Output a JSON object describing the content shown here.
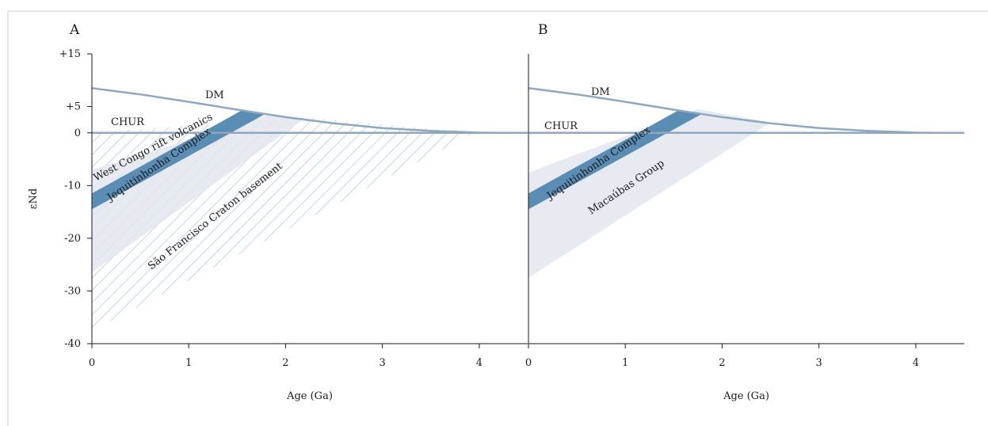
{
  "colors": {
    "reference_line": "#8fa8bf",
    "dark_band": "#5a8db3",
    "light_band": "#e3e8ee",
    "hatch": "#b8c6d3",
    "axis": "#1a1a1a",
    "frame": "#cccccc"
  },
  "chart_data": [
    {
      "type": "area",
      "panel_label": "A",
      "xlabel": "Age (Ga)",
      "ylabel": "εNd",
      "xlim": [
        0,
        4.5
      ],
      "ylim": [
        -40,
        15
      ],
      "x_ticks": [
        0,
        1,
        2,
        3,
        4
      ],
      "x_tick_labels": [
        "0",
        "1",
        "2",
        "3",
        "4"
      ],
      "y_ticks": [
        15,
        5,
        0,
        -10,
        -20,
        -30,
        -40
      ],
      "y_tick_labels": [
        "+15",
        "+5",
        "0",
        "-10",
        "-20",
        "-30",
        "-40"
      ],
      "reference_curves": [
        {
          "label": "DM",
          "x": [
            0,
            0.5,
            1.0,
            1.5,
            2.0,
            2.5,
            3.0,
            3.5,
            4.0,
            4.2,
            4.5
          ],
          "y": [
            8.5,
            7.3,
            5.9,
            4.4,
            3.0,
            1.8,
            0.9,
            0.4,
            0.05,
            0.0,
            0.0
          ]
        },
        {
          "label": "CHUR",
          "x": [
            0,
            4.5
          ],
          "y": [
            0,
            0
          ]
        }
      ],
      "regions": [
        {
          "label": "São Francisco Craton basement",
          "style": "hatched",
          "x": [
            0,
            2.15,
            3.95,
            0
          ],
          "y": [
            0,
            3.0,
            0,
            -37.5
          ]
        },
        {
          "label": "West Congo rift volcanics",
          "style": "light",
          "x": [
            0,
            1.8,
            2.2,
            0
          ],
          "y": [
            -7,
            3.3,
            2.8,
            -26.5
          ]
        },
        {
          "label": "Jequitinhonha Complex",
          "style": "dark",
          "x": [
            0,
            1.55,
            1.8,
            0
          ],
          "y": [
            -11.5,
            4.3,
            3.7,
            -14.5
          ]
        }
      ],
      "annotation_labels": [
        "DM",
        "CHUR",
        "West Congo rift volcanics",
        "Jequitinhonha Complex",
        "São Francisco Craton basement"
      ]
    },
    {
      "type": "area",
      "panel_label": "B",
      "xlabel": "Age (Ga)",
      "xlim": [
        0,
        4.5
      ],
      "ylim": [
        -40,
        15
      ],
      "x_ticks": [
        0,
        1,
        2,
        3,
        4
      ],
      "x_tick_labels": [
        "0",
        "1",
        "2",
        "3",
        "4"
      ],
      "reference_curves": [
        {
          "label": "DM",
          "x": [
            0,
            0.5,
            1.0,
            1.5,
            2.0,
            2.5,
            3.0,
            3.5,
            4.0,
            4.2,
            4.5
          ],
          "y": [
            8.5,
            7.3,
            5.9,
            4.4,
            3.0,
            1.8,
            0.9,
            0.4,
            0.05,
            0.0,
            0.0
          ]
        },
        {
          "label": "CHUR",
          "x": [
            0,
            4.5
          ],
          "y": [
            0,
            0
          ]
        }
      ],
      "regions": [
        {
          "label": "Macaúbas Group",
          "style": "light",
          "x": [
            0,
            1.75,
            2.5,
            0
          ],
          "y": [
            -7.5,
            4.5,
            2.0,
            -27.5
          ]
        },
        {
          "label": "Jequitinhonha Complex",
          "style": "dark",
          "x": [
            0,
            1.55,
            1.8,
            0
          ],
          "y": [
            -11.5,
            4.3,
            3.7,
            -14.5
          ]
        }
      ],
      "annotation_labels": [
        "DM",
        "CHUR",
        "Jequitinhonha Complex",
        "Macaúbas Group"
      ]
    }
  ]
}
